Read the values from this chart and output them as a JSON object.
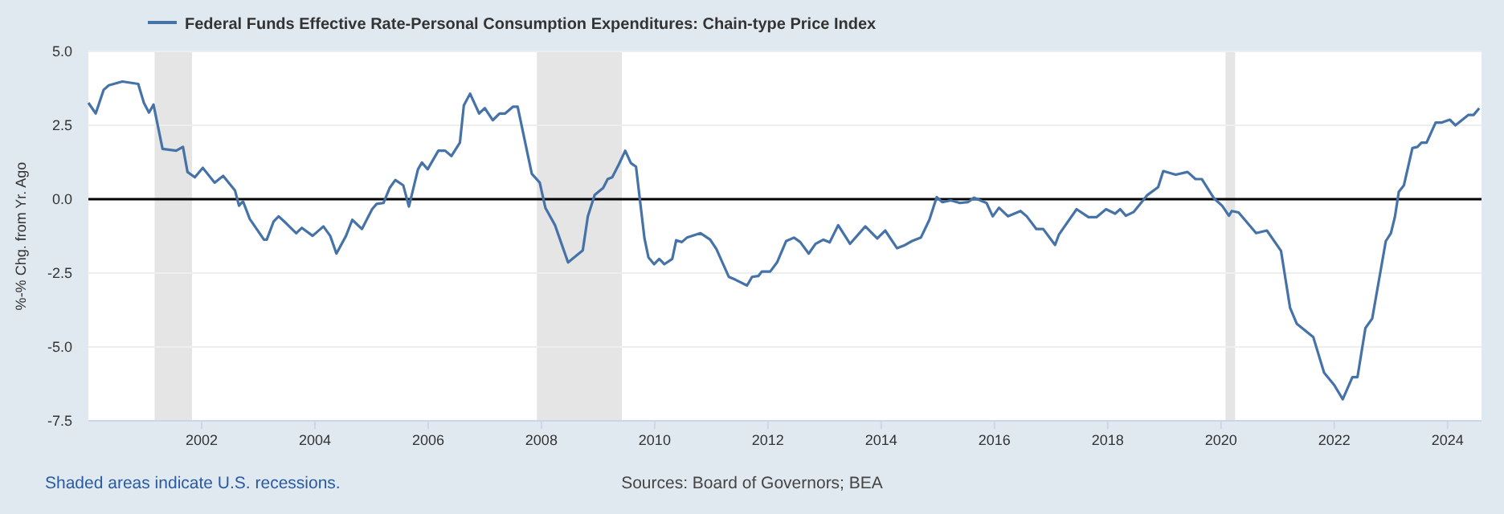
{
  "chart_data": {
    "type": "line",
    "ylabel": "%-% Chg. from Yr. Ago",
    "xlim": [
      2000,
      2024.6
    ],
    "xticks": [
      2002,
      2004,
      2006,
      2008,
      2010,
      2012,
      2014,
      2016,
      2018,
      2020,
      2022,
      2024
    ],
    "ylim": [
      -7.5,
      5
    ],
    "yticks": [
      -7.5,
      {
        "value": -5,
        "label": "-5.0"
      },
      -2.5,
      {
        "value": 0,
        "label": "0.0"
      },
      2.5,
      {
        "value": 5,
        "label": "5.0"
      }
    ],
    "grid": "y",
    "legend": "top left",
    "ref_lines": [
      {
        "axis": "y",
        "value": 0,
        "color": "#000000"
      }
    ],
    "bands": [
      {
        "axis": "x",
        "from": 2001.17,
        "to": 2001.83,
        "color": "#e5e5e5"
      },
      {
        "axis": "x",
        "from": 2007.92,
        "to": 2009.42,
        "color": "#e5e5e5"
      },
      {
        "axis": "x",
        "from": 2020.08,
        "to": 2020.25,
        "color": "#e5e5e5"
      }
    ],
    "annotations": [
      "Shaded areas indicate U.S. recessions.",
      "Sources: Board of Governors; BEA"
    ],
    "series": [
      {
        "name": "Federal Funds Effective Rate-Personal Consumption Expenditures: Chain-type Price Index",
        "color": "#4572a7",
        "x": [
          2000.0,
          2000.13,
          2000.27,
          2000.36,
          2000.6,
          2000.88,
          2000.98,
          2001.07,
          2001.15,
          2001.31,
          2001.55,
          2001.67,
          2001.75,
          2001.88,
          2002.02,
          2002.23,
          2002.38,
          2002.59,
          2002.66,
          2002.73,
          2002.85,
          2003.1,
          2003.15,
          2003.27,
          2003.36,
          2003.5,
          2003.67,
          2003.77,
          2003.96,
          2004.15,
          2004.27,
          2004.38,
          2004.55,
          2004.66,
          2004.83,
          2005.01,
          2005.09,
          2005.21,
          2005.32,
          2005.42,
          2005.56,
          2005.66,
          2005.82,
          2005.89,
          2005.99,
          2006.18,
          2006.3,
          2006.41,
          2006.56,
          2006.63,
          2006.74,
          2006.9,
          2007.0,
          2007.14,
          2007.26,
          2007.36,
          2007.5,
          2007.58,
          2007.83,
          2007.97,
          2008.07,
          2008.24,
          2008.47,
          2008.73,
          2008.82,
          2008.94,
          2009.09,
          2009.17,
          2009.25,
          2009.37,
          2009.48,
          2009.58,
          2009.67,
          2009.82,
          2009.89,
          2009.99,
          2010.08,
          2010.17,
          2010.31,
          2010.38,
          2010.48,
          2010.57,
          2010.81,
          2010.98,
          2011.09,
          2011.31,
          2011.42,
          2011.63,
          2011.72,
          2011.83,
          2011.89,
          2012.04,
          2012.16,
          2012.32,
          2012.46,
          2012.57,
          2012.72,
          2012.84,
          2012.98,
          2013.09,
          2013.24,
          2013.45,
          2013.72,
          2013.93,
          2014.07,
          2014.28,
          2014.4,
          2014.54,
          2014.7,
          2014.85,
          2014.98,
          2015.08,
          2015.23,
          2015.39,
          2015.53,
          2015.64,
          2015.86,
          2015.97,
          2016.08,
          2016.24,
          2016.46,
          2016.57,
          2016.74,
          2016.86,
          2017.07,
          2017.14,
          2017.45,
          2017.66,
          2017.8,
          2017.97,
          2018.13,
          2018.22,
          2018.32,
          2018.46,
          2018.7,
          2018.89,
          2018.98,
          2019.2,
          2019.41,
          2019.55,
          2019.66,
          2019.88,
          2020.02,
          2020.14,
          2020.19,
          2020.31,
          2020.62,
          2020.81,
          2021.06,
          2021.22,
          2021.34,
          2021.63,
          2021.82,
          2022.0,
          2022.15,
          2022.32,
          2022.41,
          2022.55,
          2022.67,
          2022.91,
          2023.0,
          2023.07,
          2023.14,
          2023.23,
          2023.38,
          2023.47,
          2023.54,
          2023.63,
          2023.79,
          2023.89,
          2024.04,
          2024.14,
          2024.37,
          2024.46,
          2024.56
        ],
        "values": [
          3.26,
          2.9,
          3.7,
          3.85,
          3.98,
          3.9,
          3.26,
          2.93,
          3.2,
          1.7,
          1.64,
          1.77,
          0.92,
          0.74,
          1.06,
          0.56,
          0.79,
          0.29,
          -0.22,
          -0.07,
          -0.67,
          -1.37,
          -1.37,
          -0.76,
          -0.58,
          -0.83,
          -1.15,
          -0.97,
          -1.24,
          -0.92,
          -1.24,
          -1.84,
          -1.24,
          -0.7,
          -1.01,
          -0.34,
          -0.16,
          -0.13,
          0.38,
          0.65,
          0.47,
          -0.25,
          1.01,
          1.24,
          1.01,
          1.64,
          1.64,
          1.46,
          1.91,
          3.17,
          3.57,
          2.9,
          3.08,
          2.67,
          2.9,
          2.9,
          3.13,
          3.13,
          0.86,
          0.56,
          -0.29,
          -0.88,
          -2.14,
          -1.73,
          -0.58,
          0.14,
          0.38,
          0.68,
          0.74,
          1.19,
          1.64,
          1.22,
          1.1,
          -1.33,
          -1.97,
          -2.2,
          -2.02,
          -2.2,
          -2.02,
          -1.39,
          -1.45,
          -1.3,
          -1.15,
          -1.37,
          -1.69,
          -2.63,
          -2.72,
          -2.92,
          -2.63,
          -2.6,
          -2.45,
          -2.45,
          -2.14,
          -1.42,
          -1.3,
          -1.45,
          -1.84,
          -1.51,
          -1.37,
          -1.46,
          -0.88,
          -1.51,
          -0.92,
          -1.33,
          -1.06,
          -1.66,
          -1.57,
          -1.42,
          -1.3,
          -0.7,
          0.07,
          -0.1,
          -0.04,
          -0.13,
          -0.1,
          0.05,
          -0.13,
          -0.58,
          -0.29,
          -0.58,
          -0.4,
          -0.58,
          -1.01,
          -1.01,
          -1.55,
          -1.19,
          -0.34,
          -0.61,
          -0.61,
          -0.34,
          -0.49,
          -0.34,
          -0.56,
          -0.43,
          0.14,
          0.41,
          0.95,
          0.83,
          0.92,
          0.68,
          0.68,
          0.02,
          -0.22,
          -0.56,
          -0.4,
          -0.45,
          -1.15,
          -1.06,
          -1.75,
          -3.68,
          -4.22,
          -4.67,
          -5.87,
          -6.29,
          -6.77,
          -6.02,
          -6.02,
          -4.36,
          -4.04,
          -1.42,
          -1.15,
          -0.61,
          0.25,
          0.47,
          1.73,
          1.77,
          1.91,
          1.91,
          2.59,
          2.59,
          2.69,
          2.5,
          2.85,
          2.85,
          3.08
        ]
      }
    ]
  }
}
